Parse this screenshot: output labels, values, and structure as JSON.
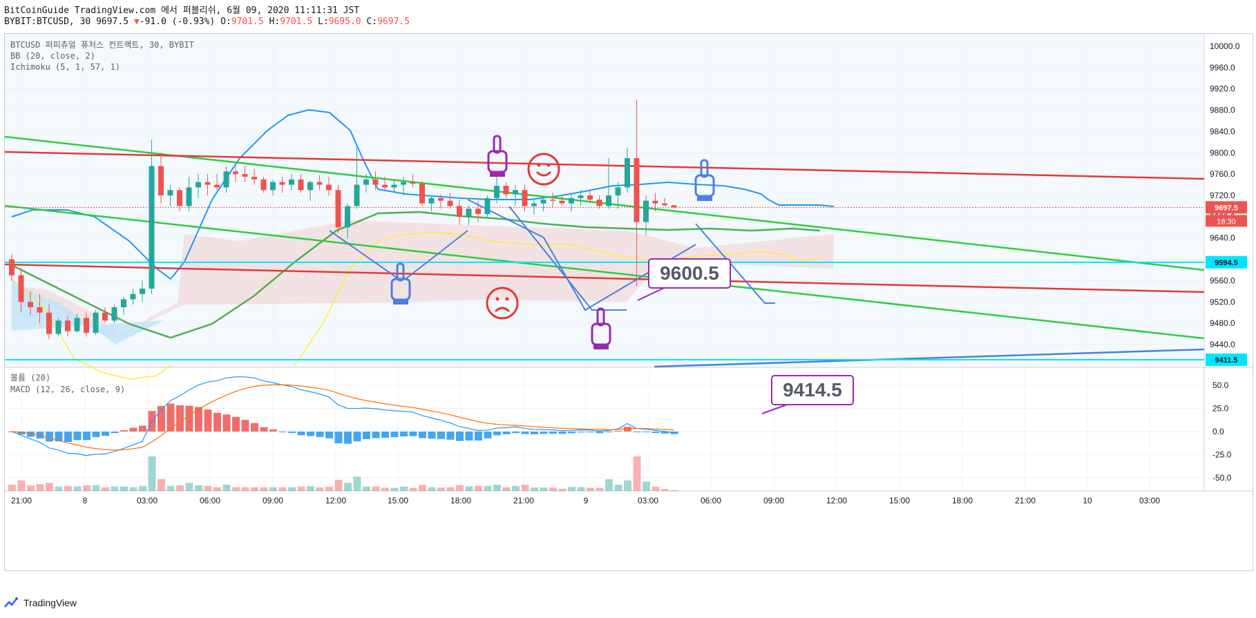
{
  "header": {
    "title": "BitCoinGuide TradingView.com 에서 퍼블리쉬, 6월 09, 2020 11:11:31 JST",
    "symbol": "BYBIT:BTCUSD, 30",
    "last": "9697.5",
    "change": "-91.0 (-0.93%)",
    "o_label": "O:",
    "o_value": "9701.5",
    "h_label": "H:",
    "h_value": "9701.5",
    "l_label": "L:",
    "l_value": "9695.0",
    "c_label": "C:",
    "c_value": "9697.5"
  },
  "legend": {
    "line1": "BTCUSD 퍼피츄얼 퓨처스 컨트랙트, 30, BYBIT",
    "line2": "BB (20, close, 2)",
    "line3": "Ichimoku (5, 1, 57, 1)",
    "vol": "볼륨 (20)",
    "macd": "MACD (12, 26, close, 9)"
  },
  "footer": {
    "brand": "TradingView"
  },
  "colors": {
    "up": "#26a69a",
    "down": "#ef5350",
    "bb": "#2196f3",
    "green_line": "#2ecc40",
    "red_line": "#e53935",
    "cyan": "#00e5ff",
    "blue_line": "#4a7fe0",
    "purple": "#9c27b0",
    "yellow": "#ffeb3b",
    "kijun": "#4caf50"
  },
  "chart_data": {
    "type": "candlestick",
    "price_axis": {
      "ticks": [
        10000.0,
        9960.0,
        9920.0,
        9880.0,
        9840.0,
        9800.0,
        9760.0,
        9720.0,
        9680.0,
        9640.0,
        9600.0,
        9560.0,
        9520.0,
        9480.0,
        9440.0
      ]
    },
    "price_labels": [
      {
        "value": 9697.5,
        "text": "9697.5",
        "color": "#ef5350"
      },
      {
        "value": 9594.5,
        "text": "9594.5",
        "color": "#00e5ff"
      },
      {
        "value": 9411.5,
        "text": "9411.5",
        "color": "#00e5ff"
      }
    ],
    "countdown": "18:30",
    "time_axis": [
      "21:00",
      "8",
      "03:00",
      "06:00",
      "09:00",
      "12:00",
      "15:00",
      "18:00",
      "21:00",
      "9",
      "03:00",
      "06:00",
      "09:00",
      "12:00",
      "15:00",
      "18:00",
      "21:00",
      "10",
      "03:00"
    ],
    "callouts": [
      {
        "text": "9600.5",
        "value": 9600.5
      },
      {
        "text": "9414.5",
        "value": 9414.5
      }
    ],
    "candles": [
      [
        9600,
        9610,
        9560,
        9570
      ],
      [
        9570,
        9585,
        9500,
        9520
      ],
      [
        9520,
        9540,
        9495,
        9510
      ],
      [
        9510,
        9535,
        9480,
        9500
      ],
      [
        9500,
        9515,
        9450,
        9460
      ],
      [
        9460,
        9490,
        9455,
        9485
      ],
      [
        9485,
        9495,
        9455,
        9465
      ],
      [
        9465,
        9498,
        9462,
        9490
      ],
      [
        9490,
        9500,
        9455,
        9462
      ],
      [
        9462,
        9505,
        9458,
        9500
      ],
      [
        9500,
        9510,
        9480,
        9485
      ],
      [
        9485,
        9515,
        9480,
        9510
      ],
      [
        9510,
        9530,
        9495,
        9525
      ],
      [
        9525,
        9545,
        9515,
        9535
      ],
      [
        9535,
        9560,
        9520,
        9545
      ],
      [
        9545,
        9825,
        9535,
        9775
      ],
      [
        9775,
        9800,
        9705,
        9720
      ],
      [
        9720,
        9740,
        9700,
        9730
      ],
      [
        9730,
        9735,
        9690,
        9700
      ],
      [
        9700,
        9755,
        9690,
        9735
      ],
      [
        9735,
        9760,
        9715,
        9745
      ],
      [
        9745,
        9760,
        9720,
        9740
      ],
      [
        9740,
        9760,
        9730,
        9735
      ],
      [
        9735,
        9775,
        9725,
        9765
      ],
      [
        9765,
        9775,
        9745,
        9760
      ],
      [
        9760,
        9775,
        9745,
        9755
      ],
      [
        9755,
        9770,
        9740,
        9750
      ],
      [
        9750,
        9755,
        9725,
        9730
      ],
      [
        9730,
        9750,
        9720,
        9745
      ],
      [
        9745,
        9755,
        9725,
        9740
      ],
      [
        9740,
        9760,
        9730,
        9750
      ],
      [
        9750,
        9760,
        9725,
        9730
      ],
      [
        9730,
        9748,
        9710,
        9745
      ],
      [
        9745,
        9758,
        9730,
        9740
      ],
      [
        9740,
        9755,
        9720,
        9730
      ],
      [
        9730,
        9740,
        9650,
        9660
      ],
      [
        9660,
        9705,
        9640,
        9700
      ],
      [
        9700,
        9810,
        9695,
        9740
      ],
      [
        9740,
        9760,
        9725,
        9750
      ],
      [
        9750,
        9765,
        9730,
        9740
      ],
      [
        9740,
        9755,
        9730,
        9735
      ],
      [
        9735,
        9750,
        9725,
        9740
      ],
      [
        9740,
        9755,
        9720,
        9745
      ],
      [
        9745,
        9760,
        9735,
        9742
      ],
      [
        9742,
        9748,
        9700,
        9705
      ],
      [
        9705,
        9720,
        9690,
        9715
      ],
      [
        9715,
        9722,
        9695,
        9710
      ],
      [
        9710,
        9725,
        9695,
        9700
      ],
      [
        9700,
        9712,
        9665,
        9680
      ],
      [
        9680,
        9702,
        9665,
        9695
      ],
      [
        9695,
        9710,
        9670,
        9685
      ],
      [
        9685,
        9720,
        9680,
        9715
      ],
      [
        9715,
        9755,
        9705,
        9738
      ],
      [
        9738,
        9745,
        9715,
        9722
      ],
      [
        9722,
        9740,
        9700,
        9730
      ],
      [
        9730,
        9740,
        9690,
        9700
      ],
      [
        9700,
        9712,
        9685,
        9705
      ],
      [
        9705,
        9718,
        9690,
        9712
      ],
      [
        9712,
        9725,
        9698,
        9710
      ],
      [
        9710,
        9718,
        9700,
        9705
      ],
      [
        9705,
        9722,
        9690,
        9715
      ],
      [
        9715,
        9730,
        9700,
        9720
      ],
      [
        9720,
        9730,
        9705,
        9712
      ],
      [
        9712,
        9720,
        9695,
        9700
      ],
      [
        9700,
        9790,
        9695,
        9720
      ],
      [
        9720,
        9745,
        9695,
        9735
      ],
      [
        9735,
        9810,
        9725,
        9790
      ],
      [
        9790,
        9900,
        9550,
        9670
      ],
      [
        9670,
        9720,
        9645,
        9710
      ],
      [
        9710,
        9725,
        9690,
        9705
      ],
      [
        9705,
        9715,
        9700,
        9701.5
      ],
      [
        9701.5,
        9701.5,
        9695,
        9697.5
      ]
    ],
    "macd_axis": {
      "ticks": [
        50.0,
        25.0,
        0.0,
        -25.0,
        -50.0
      ]
    }
  }
}
